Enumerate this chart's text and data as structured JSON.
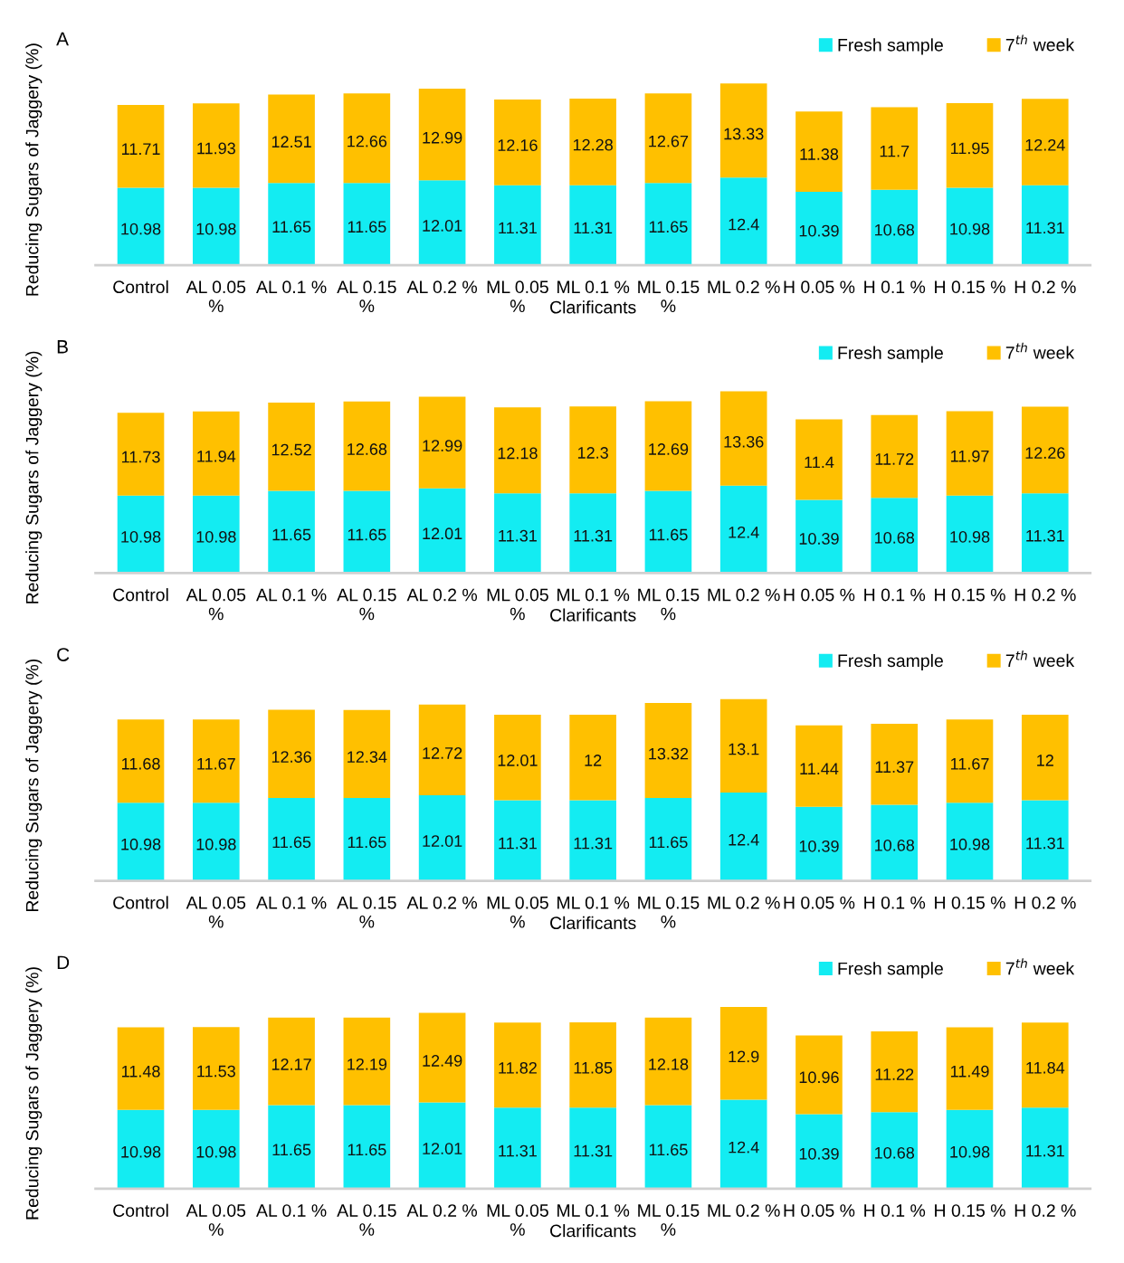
{
  "chart_data": [
    {
      "type": "bar",
      "title": "A",
      "xlabel": "Clarificants",
      "ylabel": "Reducing Sugars of Jaggery (%)",
      "stacked": true,
      "data_labels": true,
      "legend": "top right",
      "categories": [
        "Control",
        "AL 0.05 %",
        "AL 0.1 %",
        "AL 0.15 %",
        "AL 0.2 %",
        "ML 0.05 %",
        "ML 0.1 %",
        "ML 0.15 %",
        "ML 0.2 %",
        "H 0.05 %",
        "H 0.1 %",
        "H 0.15 %",
        "H 0.2 %"
      ],
      "series": [
        {
          "name": "Fresh sample",
          "color": "#13ecf2",
          "values": [
            10.98,
            10.98,
            11.65,
            11.65,
            12.01,
            11.31,
            11.31,
            11.65,
            12.4,
            10.39,
            10.68,
            10.98,
            11.31
          ]
        },
        {
          "name": "7$^{th}$ week",
          "color": "#ffc000",
          "values": [
            11.71,
            11.93,
            12.51,
            12.66,
            12.99,
            12.16,
            12.28,
            12.67,
            13.33,
            11.38,
            11.7,
            11.95,
            12.24
          ]
        }
      ]
    },
    {
      "type": "bar",
      "title": "B",
      "xlabel": "Clarificants",
      "ylabel": "Reducing Sugars of Jaggery (%)",
      "stacked": true,
      "data_labels": true,
      "legend": "top right",
      "categories": [
        "Control",
        "AL 0.05 %",
        "AL 0.1 %",
        "AL 0.15 %",
        "AL 0.2 %",
        "ML 0.05 %",
        "ML 0.1 %",
        "ML 0.15 %",
        "ML 0.2 %",
        "H 0.05 %",
        "H 0.1 %",
        "H 0.15 %",
        "H 0.2 %"
      ],
      "series": [
        {
          "name": "Fresh sample",
          "color": "#13ecf2",
          "values": [
            10.98,
            10.98,
            11.65,
            11.65,
            12.01,
            11.31,
            11.31,
            11.65,
            12.4,
            10.39,
            10.68,
            10.98,
            11.31
          ]
        },
        {
          "name": "7$^{th}$ week",
          "color": "#ffc000",
          "values": [
            11.73,
            11.94,
            12.52,
            12.68,
            12.99,
            12.18,
            12.3,
            12.69,
            13.36,
            11.4,
            11.72,
            11.97,
            12.26
          ]
        }
      ]
    },
    {
      "type": "bar",
      "title": "C",
      "xlabel": "Clarificants",
      "ylabel": "Reducing Sugars of Jaggery (%)",
      "stacked": true,
      "data_labels": true,
      "legend": "top right",
      "categories": [
        "Control",
        "AL 0.05 %",
        "AL 0.1 %",
        "AL 0.15 %",
        "AL 0.2 %",
        "ML 0.05 %",
        "ML 0.1 %",
        "ML 0.15 %",
        "ML 0.2 %",
        "H 0.05 %",
        "H 0.1 %",
        "H 0.15 %",
        "H 0.2 %"
      ],
      "series": [
        {
          "name": "Fresh sample",
          "color": "#13ecf2",
          "values": [
            10.98,
            10.98,
            11.65,
            11.65,
            12.01,
            11.31,
            11.31,
            11.65,
            12.4,
            10.39,
            10.68,
            10.98,
            11.31
          ]
        },
        {
          "name": "7$^{th}$ week",
          "color": "#ffc000",
          "values": [
            11.68,
            11.67,
            12.36,
            12.34,
            12.72,
            12.01,
            12,
            13.32,
            13.1,
            11.44,
            11.37,
            11.67,
            12
          ]
        }
      ]
    },
    {
      "type": "bar",
      "title": "D",
      "xlabel": "Clarificants",
      "ylabel": "Reducing Sugars of Jaggery (%)",
      "stacked": true,
      "data_labels": true,
      "legend": "top right",
      "categories": [
        "Control",
        "AL 0.05 %",
        "AL 0.1 %",
        "AL 0.15 %",
        "AL 0.2 %",
        "ML 0.05 %",
        "ML 0.1 %",
        "ML 0.15 %",
        "ML 0.2 %",
        "H 0.05 %",
        "H 0.1 %",
        "H 0.15 %",
        "H 0.2 %"
      ],
      "series": [
        {
          "name": "Fresh sample",
          "color": "#13ecf2",
          "values": [
            10.98,
            10.98,
            11.65,
            11.65,
            12.01,
            11.31,
            11.31,
            11.65,
            12.4,
            10.39,
            10.68,
            10.98,
            11.31
          ]
        },
        {
          "name": "7$^{th}$ week",
          "color": "#ffc000",
          "values": [
            11.48,
            11.53,
            12.17,
            12.19,
            12.49,
            11.82,
            11.85,
            12.18,
            12.9,
            10.96,
            11.22,
            11.49,
            11.84
          ]
        }
      ]
    }
  ]
}
